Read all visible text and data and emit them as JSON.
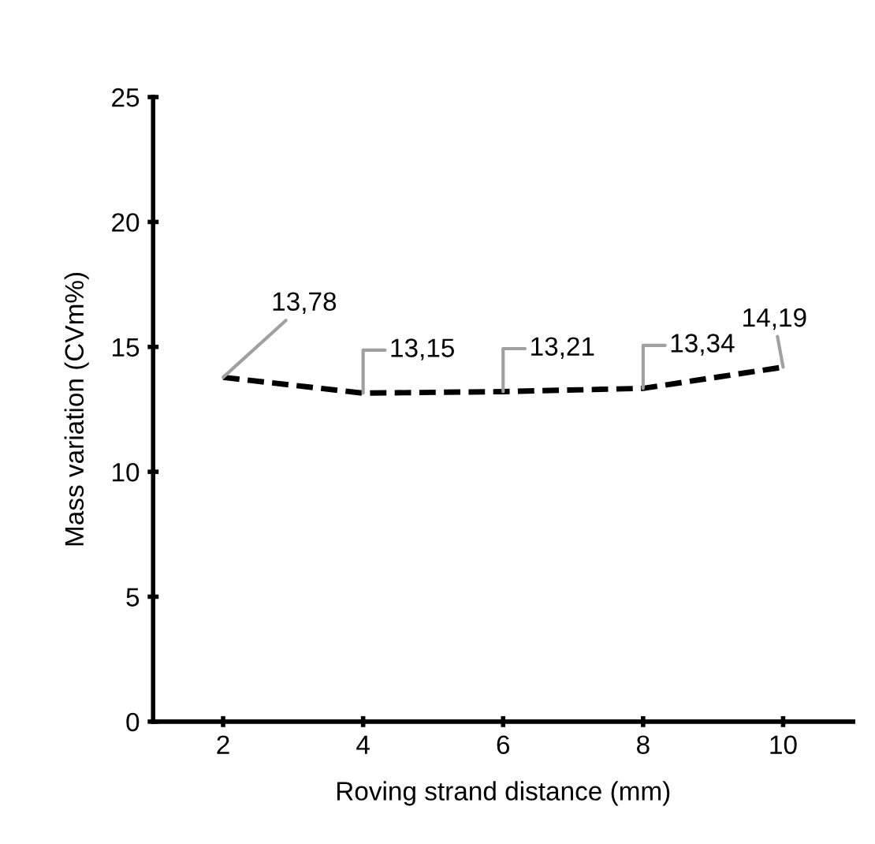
{
  "chart_data": {
    "type": "line",
    "xlabel": "Roving strand distance (mm)",
    "ylabel": "Mass variation (CVm%)",
    "x": [
      2,
      4,
      6,
      8,
      10
    ],
    "series": [
      {
        "color": "#000000",
        "values": [
          13.78,
          13.15,
          13.21,
          13.34,
          14.19
        ],
        "value_labels": [
          "13,78",
          "13,15",
          "13,21",
          "13,34",
          "14,19"
        ],
        "line_style": "dashed",
        "marker": "none"
      }
    ],
    "xlim": [
      1,
      11
    ],
    "xticks": [
      2,
      4,
      6,
      8,
      10
    ],
    "ylim": [
      0,
      25
    ],
    "yticks": [
      0,
      5,
      10,
      15,
      20,
      25
    ],
    "grid": false,
    "legend": false
  }
}
